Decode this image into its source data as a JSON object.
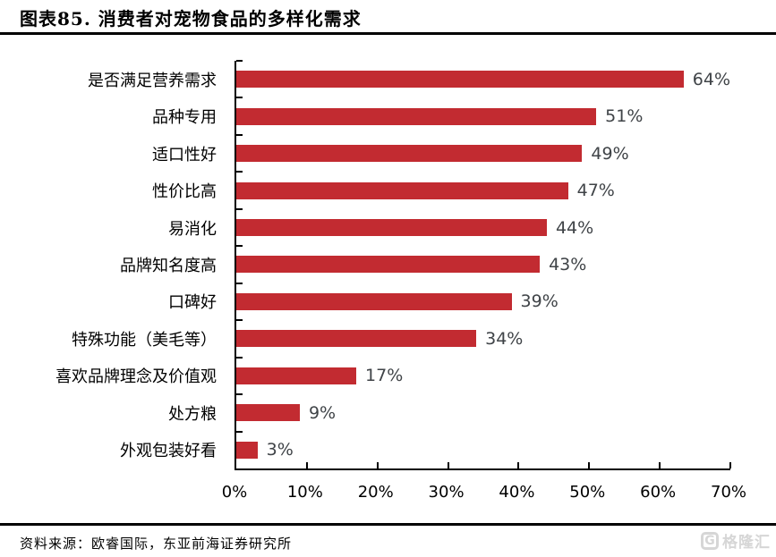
{
  "header": {
    "title": "图表85. 消费者对宠物食品的多样化需求"
  },
  "chart_data": {
    "type": "bar",
    "orientation": "horizontal",
    "title": "图表85. 消费者对宠物食品的多样化需求",
    "categories": [
      "是否满足营养需求",
      "品种专用",
      "适口性好",
      "性价比高",
      "易消化",
      "品牌知名度高",
      "口碑好",
      "特殊功能（美毛等）",
      "喜欢品牌理念及价值观",
      "处方粮",
      "外观包装好看"
    ],
    "values": [
      64,
      51,
      49,
      47,
      44,
      43,
      39,
      34,
      17,
      9,
      3
    ],
    "value_labels": [
      "64%",
      "51%",
      "49%",
      "47%",
      "44%",
      "43%",
      "39%",
      "34%",
      "17%",
      "9%",
      "3%"
    ],
    "x_ticks": [
      "0%",
      "10%",
      "20%",
      "30%",
      "40%",
      "50%",
      "60%",
      "70%"
    ],
    "xlim": [
      0,
      70
    ],
    "grid": false,
    "legend": false,
    "bar_color": "#c22b31",
    "value_label_color": "#3f4347",
    "axis_color": "#000000"
  },
  "footer": {
    "source": "资料来源：欧睿国际，东亚前海证券研究所",
    "logo_letter": "G",
    "logo_text": "格隆汇",
    "logo_color": "#d6d6d6"
  }
}
